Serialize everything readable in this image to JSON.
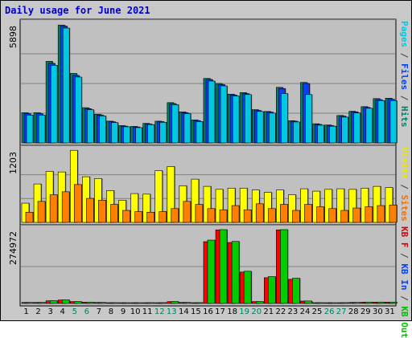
{
  "chart_data": {
    "type": "bar",
    "title": "Daily usage for June 2021",
    "categories": [
      "1",
      "2",
      "3",
      "4",
      "5",
      "6",
      "7",
      "8",
      "9",
      "10",
      "11",
      "12",
      "13",
      "14",
      "15",
      "16",
      "17",
      "18",
      "19",
      "20",
      "21",
      "22",
      "23",
      "24",
      "25",
      "26",
      "27",
      "28",
      "29",
      "30",
      "31"
    ],
    "weekend_days": [
      "5",
      "6",
      "12",
      "13",
      "19",
      "20",
      "26",
      "27"
    ],
    "panels": [
      {
        "max_label": "5898",
        "max": 5898,
        "legend": [
          {
            "text": "Pages",
            "color": "#00c8e0"
          },
          {
            "text": " / ",
            "color": "#404040"
          },
          {
            "text": "Files",
            "color": "#0040ff"
          },
          {
            "text": " / ",
            "color": "#404040"
          },
          {
            "text": "Hits",
            "color": "#00806a"
          }
        ],
        "series": [
          {
            "name": "Hits",
            "color": "#008060",
            "values": [
              1500,
              1500,
              4050,
              5850,
              3450,
              1750,
              1420,
              1080,
              860,
              820,
              970,
              1080,
              2000,
              1540,
              1140,
              3200,
              2950,
              2420,
              2500,
              1650,
              1560,
              2760,
              1100,
              3000,
              950,
              890,
              1360,
              1570,
              1800,
              2200,
              2220
            ]
          },
          {
            "name": "Files",
            "color": "#0040ff",
            "values": [
              1450,
              1450,
              3950,
              5800,
              3350,
              1700,
              1380,
              1050,
              830,
              790,
              940,
              1060,
              1950,
              1500,
              1110,
              3150,
              2900,
              2380,
              2450,
              1610,
              1530,
              2700,
              1080,
              2950,
              920,
              860,
              1330,
              1540,
              1760,
              2150,
              2170
            ]
          },
          {
            "name": "Pages",
            "color": "#00c8e0",
            "values": [
              1380,
              1380,
              3850,
              5700,
              3270,
              1650,
              1340,
              1010,
              800,
              760,
              910,
              1020,
              1900,
              1450,
              1060,
              3070,
              2830,
              2330,
              2400,
              1560,
              1480,
              2450,
              1040,
              2400,
              880,
              830,
              1280,
              1490,
              1720,
              2100,
              2100
            ]
          }
        ]
      },
      {
        "max_label": "1203",
        "max": 1203,
        "legend": [
          {
            "text": "Visits",
            "color": "#e8e800"
          },
          {
            "text": " / ",
            "color": "#404040"
          },
          {
            "text": "Sites",
            "color": "#f07000"
          }
        ],
        "series": [
          {
            "name": "Visits",
            "color": "#ffff00",
            "values": [
              320,
              640,
              850,
              840,
              1200,
              760,
              730,
              530,
              370,
              480,
              470,
              860,
              930,
              610,
              720,
              600,
              550,
              570,
              570,
              540,
              500,
              540,
              460,
              560,
              520,
              550,
              560,
              550,
              570,
              600,
              580
            ]
          },
          {
            "name": "Sites",
            "color": "#ff8000",
            "values": [
              170,
              350,
              460,
              510,
              630,
              400,
              370,
              300,
              200,
              180,
              170,
              180,
              230,
              350,
              300,
              230,
              210,
              280,
              210,
              310,
              230,
              300,
              200,
              300,
              260,
              230,
              200,
              240,
              260,
              280,
              290
            ]
          }
        ]
      },
      {
        "max_label": "274972",
        "max": 274972,
        "legend": [
          {
            "text": "KB F",
            "color": "#e00000"
          },
          {
            "text": " / ",
            "color": "#404040"
          },
          {
            "text": "KB In",
            "color": "#0040ff"
          },
          {
            "text": " / ",
            "color": "#404040"
          },
          {
            "text": "KB Out",
            "color": "#00c000"
          }
        ],
        "series": [
          {
            "name": "KB F",
            "color": "#ff0000",
            "values": [
              4000,
              4000,
              10000,
              13000,
              7000,
              5000,
              4000,
              3000,
              2000,
              2000,
              3000,
              3000,
              7000,
              4000,
              3000,
              230000,
              274000,
              227000,
              117000,
              7000,
              96000,
              274000,
              90000,
              9000,
              3000,
              2000,
              3000,
              4000,
              5000,
              5000,
              5000
            ]
          },
          {
            "name": "KB Out",
            "color": "#00cc00",
            "values": [
              4200,
              4200,
              10500,
              13500,
              7300,
              5200,
              4200,
              3200,
              2200,
              2200,
              3200,
              3200,
              7300,
              4200,
              3200,
              236000,
              274972,
              231000,
              120000,
              7300,
              100000,
              274972,
              94000,
              9300,
              3200,
              2200,
              3200,
              4200,
              5300,
              5300,
              5300
            ]
          }
        ]
      }
    ]
  }
}
